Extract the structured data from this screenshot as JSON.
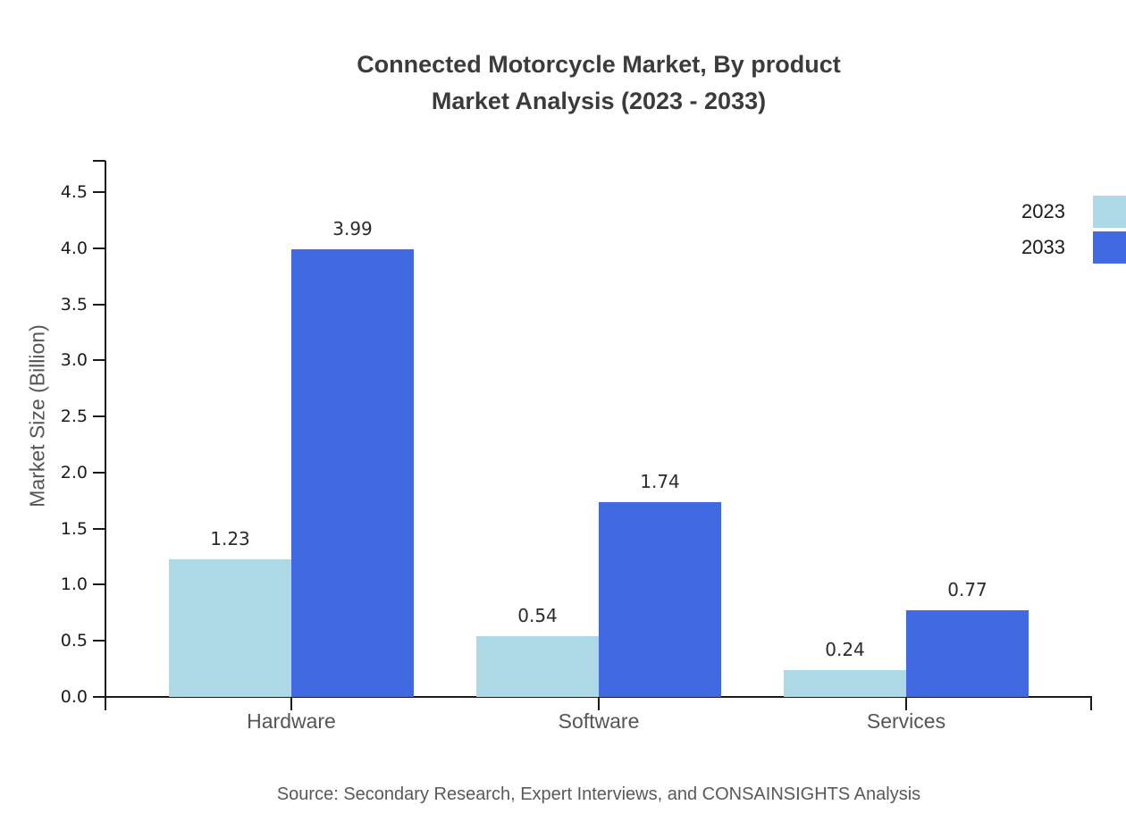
{
  "title_lines": {
    "line1": "Connected Motorcycle Market, By product",
    "line2": "Market Analysis (2023 - 2033)"
  },
  "source": "Source: Secondary Research, Expert Interviews, and CONSAINSIGHTS Analysis",
  "chart_data": {
    "type": "bar",
    "title": "Connected Motorcycle Market, By product Market Analysis (2023 - 2033)",
    "categories": [
      "Hardware",
      "Software",
      "Services"
    ],
    "series": [
      {
        "name": "2023",
        "color": "#ADD8E6",
        "values": [
          1.23,
          0.54,
          0.24
        ]
      },
      {
        "name": "2033",
        "color": "#4169E1",
        "values": [
          3.99,
          1.74,
          0.77
        ]
      }
    ],
    "xlabel": "",
    "ylabel": "Market Size (Billion)",
    "ylim": [
      0,
      4.78
    ],
    "yticks": [
      0.0,
      0.5,
      1.0,
      1.5,
      2.0,
      2.5,
      3.0,
      3.5,
      4.0,
      4.5
    ],
    "grid": false,
    "value_labels": true,
    "value_label_format": "0.00",
    "legend_position": "upper-right-outside"
  }
}
